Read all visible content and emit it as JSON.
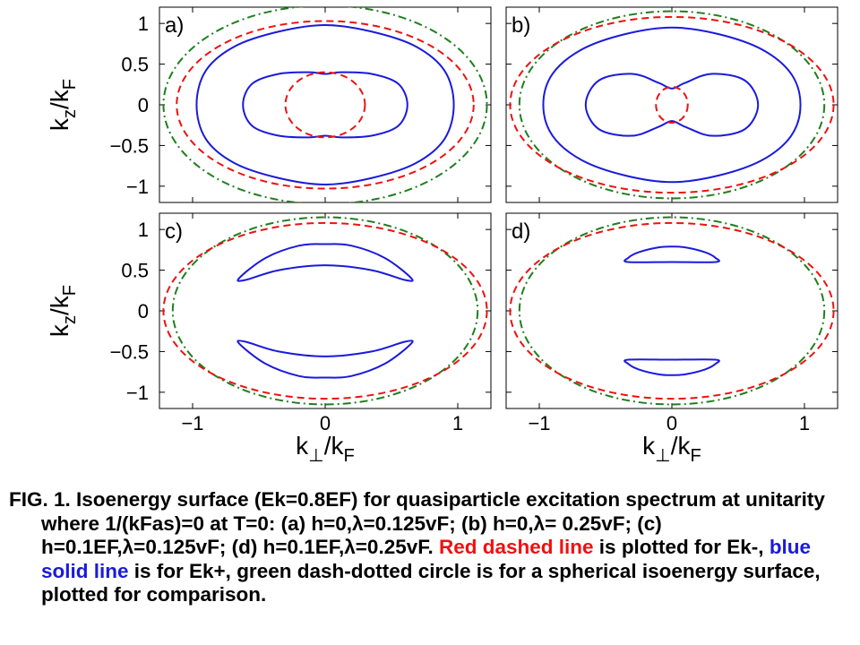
{
  "colors": {
    "red_dashed": "#ee1111",
    "blue_solid": "#1a1adc",
    "green_dashdot": "#1e7f1e"
  },
  "axes": {
    "ylabel": "k_z/k_F",
    "xlabel": "k_⊥/k_F",
    "yticks": [
      1,
      0.5,
      0,
      -0.5,
      -1
    ],
    "ytick_labels": [
      "1",
      "0.5",
      "0",
      "−0.5",
      "−1"
    ],
    "xticks": [
      -1,
      0,
      1
    ],
    "xtick_labels": [
      "−1",
      "0",
      "1"
    ],
    "xlim": [
      -1.25,
      1.25
    ],
    "ylim": [
      -1.2,
      1.2
    ],
    "panel_c_d_ylim": [
      -1.2,
      1.2
    ]
  },
  "chart_data": [
    {
      "type": "line",
      "panel_label": "a)",
      "series": [
        {
          "style": "green-dashdot",
          "kind": "circle",
          "radius": 1.22
        },
        {
          "style": "red-dashed",
          "kind": "ellipse",
          "rx": 1.12,
          "ry": 1.03
        },
        {
          "style": "blue-solid",
          "kind": "points",
          "points": [
            [
              0,
              0.98
            ],
            [
              0.35,
              0.9
            ],
            [
              0.68,
              0.72
            ],
            [
              0.9,
              0.42
            ],
            [
              0.97,
              0
            ],
            [
              0.9,
              -0.42
            ],
            [
              0.68,
              -0.72
            ],
            [
              0.35,
              -0.9
            ],
            [
              0,
              -0.98
            ],
            [
              -0.35,
              -0.9
            ],
            [
              -0.68,
              -0.72
            ],
            [
              -0.9,
              -0.42
            ],
            [
              -0.97,
              0
            ],
            [
              -0.9,
              0.42
            ],
            [
              -0.68,
              0.72
            ],
            [
              -0.35,
              0.9
            ]
          ]
        },
        {
          "style": "blue-solid",
          "kind": "points",
          "points": [
            [
              0,
              0.38
            ],
            [
              0.12,
              0.4
            ],
            [
              0.35,
              0.38
            ],
            [
              0.55,
              0.26
            ],
            [
              0.62,
              0
            ],
            [
              0.55,
              -0.26
            ],
            [
              0.35,
              -0.38
            ],
            [
              0.12,
              -0.4
            ],
            [
              0,
              -0.38
            ],
            [
              -0.12,
              -0.4
            ],
            [
              -0.35,
              -0.38
            ],
            [
              -0.55,
              -0.26
            ],
            [
              -0.62,
              0
            ],
            [
              -0.55,
              0.26
            ],
            [
              -0.35,
              0.38
            ],
            [
              -0.12,
              0.4
            ]
          ]
        },
        {
          "style": "red-dashed",
          "kind": "ellipse",
          "rx": 0.3,
          "ry": 0.4
        }
      ]
    },
    {
      "type": "line",
      "panel_label": "b)",
      "series": [
        {
          "style": "green-dashdot",
          "kind": "ellipse",
          "rx": 1.15,
          "ry": 1.15
        },
        {
          "style": "red-dashed",
          "kind": "ellipse",
          "rx": 1.22,
          "ry": 1.08
        },
        {
          "style": "blue-solid",
          "kind": "points",
          "points": [
            [
              0,
              0.95
            ],
            [
              0.35,
              0.87
            ],
            [
              0.68,
              0.68
            ],
            [
              0.9,
              0.38
            ],
            [
              0.97,
              0
            ],
            [
              0.9,
              -0.38
            ],
            [
              0.68,
              -0.68
            ],
            [
              0.35,
              -0.87
            ],
            [
              0,
              -0.95
            ],
            [
              -0.35,
              -0.87
            ],
            [
              -0.68,
              -0.68
            ],
            [
              -0.9,
              -0.38
            ],
            [
              -0.97,
              0
            ],
            [
              -0.9,
              0.38
            ],
            [
              -0.68,
              0.68
            ],
            [
              -0.35,
              0.87
            ]
          ]
        },
        {
          "style": "blue-solid",
          "kind": "points",
          "points": [
            [
              0,
              0.2
            ],
            [
              0.1,
              0.27
            ],
            [
              0.3,
              0.38
            ],
            [
              0.55,
              0.3
            ],
            [
              0.65,
              0
            ],
            [
              0.55,
              -0.3
            ],
            [
              0.3,
              -0.38
            ],
            [
              0.1,
              -0.27
            ],
            [
              0,
              -0.2
            ],
            [
              -0.1,
              -0.27
            ],
            [
              -0.3,
              -0.38
            ],
            [
              -0.55,
              -0.3
            ],
            [
              -0.65,
              0
            ],
            [
              -0.55,
              0.3
            ],
            [
              -0.3,
              0.38
            ],
            [
              -0.1,
              0.27
            ]
          ]
        },
        {
          "style": "red-dashed",
          "kind": "ellipse",
          "rx": 0.12,
          "ry": 0.22
        }
      ]
    },
    {
      "type": "line",
      "panel_label": "c)",
      "series": [
        {
          "style": "green-dashdot",
          "kind": "circle",
          "radius": 1.15
        },
        {
          "style": "red-dashed",
          "kind": "ellipse",
          "rx": 1.22,
          "ry": 1.08
        },
        {
          "style": "blue-solid",
          "kind": "points",
          "points": [
            [
              -0.65,
              0.4
            ],
            [
              -0.45,
              0.65
            ],
            [
              -0.2,
              0.8
            ],
            [
              0,
              0.82
            ],
            [
              0.2,
              0.8
            ],
            [
              0.45,
              0.65
            ],
            [
              0.65,
              0.4
            ],
            [
              0.6,
              0.38
            ],
            [
              0.35,
              0.5
            ],
            [
              0,
              0.56
            ],
            [
              -0.35,
              0.5
            ],
            [
              -0.6,
              0.38
            ]
          ]
        },
        {
          "style": "blue-solid",
          "kind": "points",
          "points": [
            [
              -0.65,
              -0.4
            ],
            [
              -0.45,
              -0.65
            ],
            [
              -0.2,
              -0.8
            ],
            [
              0,
              -0.82
            ],
            [
              0.2,
              -0.8
            ],
            [
              0.45,
              -0.65
            ],
            [
              0.65,
              -0.4
            ],
            [
              0.6,
              -0.38
            ],
            [
              0.35,
              -0.5
            ],
            [
              0,
              -0.56
            ],
            [
              -0.35,
              -0.5
            ],
            [
              -0.6,
              -0.38
            ]
          ]
        }
      ]
    },
    {
      "type": "line",
      "panel_label": "d)",
      "series": [
        {
          "style": "green-dashdot",
          "kind": "circle",
          "radius": 1.15
        },
        {
          "style": "red-dashed",
          "kind": "ellipse",
          "rx": 1.22,
          "ry": 1.08
        },
        {
          "style": "blue-solid",
          "kind": "points",
          "points": [
            [
              -0.33,
              0.65
            ],
            [
              -0.25,
              0.72
            ],
            [
              -0.1,
              0.78
            ],
            [
              0,
              0.79
            ],
            [
              0.1,
              0.78
            ],
            [
              0.25,
              0.72
            ],
            [
              0.33,
              0.65
            ],
            [
              0.33,
              0.6
            ],
            [
              0,
              0.6
            ],
            [
              -0.33,
              0.6
            ]
          ]
        },
        {
          "style": "blue-solid",
          "kind": "points",
          "points": [
            [
              -0.33,
              -0.6
            ],
            [
              0,
              -0.6
            ],
            [
              0.33,
              -0.6
            ],
            [
              0.33,
              -0.65
            ],
            [
              0.25,
              -0.72
            ],
            [
              0.1,
              -0.78
            ],
            [
              0,
              -0.79
            ],
            [
              -0.1,
              -0.78
            ],
            [
              -0.25,
              -0.72
            ],
            [
              -0.33,
              -0.65
            ]
          ]
        }
      ]
    }
  ],
  "caption": {
    "part1": "FIG. 1. Isoenergy surface (Ek=0.8EF) for quasiparticle excitation spectrum at unitarity where 1/(kFas)=0 at T=0: (a) h=0,λ=0.125vF; (b) h=0,λ= 0.25vF; (c) h=0.1EF,λ=0.125vF; (d) h=0.1EF,λ=0.25vF. ",
    "red_text": "Red dashed line",
    "part2": " is plotted for Ek-, ",
    "blue_text": "blue solid line",
    "part3": " is for Ek+, green dash-dotted circle is for a spherical isoenergy surface, plotted for comparison."
  }
}
